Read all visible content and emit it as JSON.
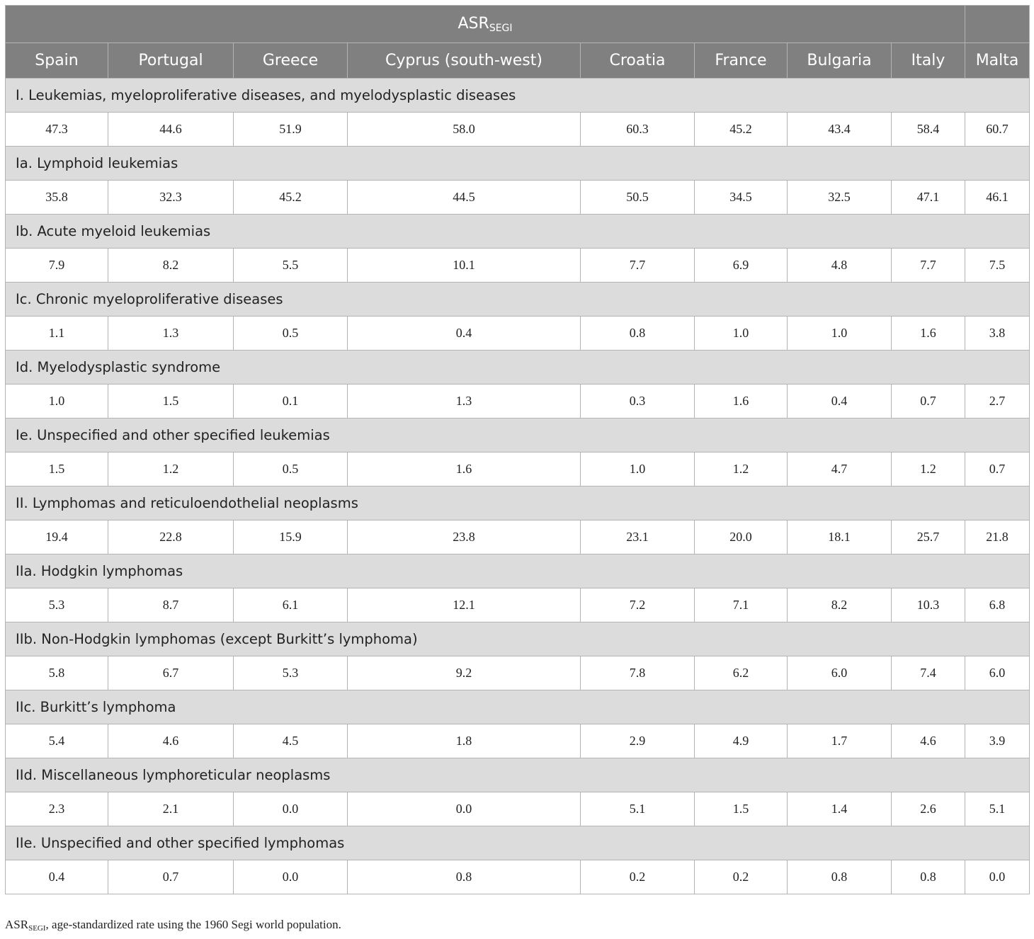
{
  "header": {
    "title_main": "ASR",
    "title_sub": "SEGI",
    "countries": [
      "Spain",
      "Portugal",
      "Greece",
      "Cyprus (south-west)",
      "Croatia",
      "France",
      "Bulgaria",
      "Italy",
      "Malta"
    ]
  },
  "rows": [
    {
      "category": "I. Leukemias, myeloproliferative diseases, and myelodysplastic diseases",
      "values": [
        "47.3",
        "44.6",
        "51.9",
        "58.0",
        "60.3",
        "45.2",
        "43.4",
        "58.4",
        "60.7"
      ]
    },
    {
      "category": "Ia. Lymphoid leukemias",
      "values": [
        "35.8",
        "32.3",
        "45.2",
        "44.5",
        "50.5",
        "34.5",
        "32.5",
        "47.1",
        "46.1"
      ]
    },
    {
      "category": "Ib. Acute myeloid leukemias",
      "values": [
        "7.9",
        "8.2",
        "5.5",
        "10.1",
        "7.7",
        "6.9",
        "4.8",
        "7.7",
        "7.5"
      ]
    },
    {
      "category": "Ic. Chronic myeloproliferative diseases",
      "values": [
        "1.1",
        "1.3",
        "0.5",
        "0.4",
        "0.8",
        "1.0",
        "1.0",
        "1.6",
        "3.8"
      ]
    },
    {
      "category": "Id. Myelodysplastic syndrome",
      "values": [
        "1.0",
        "1.5",
        "0.1",
        "1.3",
        "0.3",
        "1.6",
        "0.4",
        "0.7",
        "2.7"
      ]
    },
    {
      "category": "Ie. Unspecified and other specified leukemias",
      "values": [
        "1.5",
        "1.2",
        "0.5",
        "1.6",
        "1.0",
        "1.2",
        "4.7",
        "1.2",
        "0.7"
      ]
    },
    {
      "category": "II. Lymphomas and reticuloendothelial neoplasms",
      "values": [
        "19.4",
        "22.8",
        "15.9",
        "23.8",
        "23.1",
        "20.0",
        "18.1",
        "25.7",
        "21.8"
      ]
    },
    {
      "category": "IIa. Hodgkin lymphomas",
      "values": [
        "5.3",
        "8.7",
        "6.1",
        "12.1",
        "7.2",
        "7.1",
        "8.2",
        "10.3",
        "6.8"
      ]
    },
    {
      "category": "IIb. Non-Hodgkin lymphomas (except Burkitt’s lymphoma)",
      "values": [
        "5.8",
        "6.7",
        "5.3",
        "9.2",
        "7.8",
        "6.2",
        "6.0",
        "7.4",
        "6.0"
      ]
    },
    {
      "category": "IIc. Burkitt’s lymphoma",
      "values": [
        "5.4",
        "4.6",
        "4.5",
        "1.8",
        "2.9",
        "4.9",
        "1.7",
        "4.6",
        "3.9"
      ]
    },
    {
      "category": "IId. Miscellaneous lymphoreticular neoplasms",
      "values": [
        "2.3",
        "2.1",
        "0.0",
        "0.0",
        "5.1",
        "1.5",
        "1.4",
        "2.6",
        "5.1"
      ]
    },
    {
      "category": "IIe. Unspecified and other specified lymphomas",
      "values": [
        "0.4",
        "0.7",
        "0.0",
        "0.8",
        "0.2",
        "0.2",
        "0.8",
        "0.8",
        "0.0"
      ]
    }
  ],
  "footnote": {
    "abbr_main": "ASR",
    "abbr_sub": "SEGI",
    "text": ", age-standardized rate using the 1960 Segi world population."
  }
}
